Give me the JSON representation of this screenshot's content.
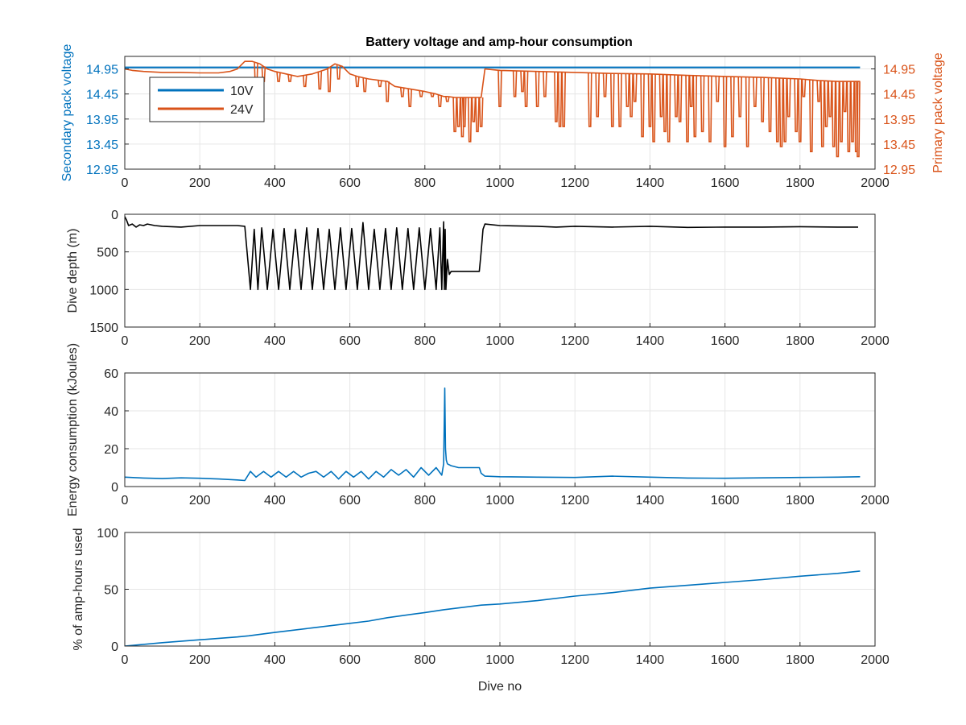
{
  "title": "Battery voltage and amp-hour consumption",
  "colors": {
    "blue": "#0072BD",
    "orange": "#D95319",
    "black": "#000000",
    "grid": "#E6E6E6"
  },
  "chart_data": [
    {
      "type": "line",
      "title": "Battery voltage and amp-hour consumption",
      "xlabel": "",
      "ylabel": "Secondary pack voltage",
      "ylabel_right": "Primary pack voltage",
      "xlim": [
        0,
        2000
      ],
      "ylim": [
        12.95,
        15.2
      ],
      "ylim_right": [
        12.95,
        15.2
      ],
      "xticks": [
        "0",
        "200",
        "400",
        "600",
        "800",
        "1000",
        "1200",
        "1400",
        "1600",
        "1800",
        "2000"
      ],
      "yticks": [
        "12.95",
        "13.45",
        "13.95",
        "14.45",
        "14.95"
      ],
      "yticks_right": [
        "12.95",
        "13.45",
        "13.95",
        "14.45",
        "14.95"
      ],
      "grid": true,
      "legend": "top-left",
      "series": [
        {
          "name": "10V",
          "axis": "left",
          "color": "#0072BD",
          "x": [
            0,
            1960
          ],
          "y": [
            14.98,
            14.98
          ]
        },
        {
          "name": "24V",
          "axis": "right",
          "color": "#D95319",
          "x": [
            0,
            20,
            50,
            100,
            150,
            200,
            250,
            280,
            300,
            320,
            340,
            360,
            380,
            400,
            430,
            460,
            500,
            540,
            560,
            580,
            600,
            620,
            650,
            700,
            720,
            760,
            800,
            830,
            850,
            860,
            880,
            900,
            950,
            960,
            1000,
            1100,
            1200,
            1300,
            1400,
            1500,
            1600,
            1700,
            1800,
            1850,
            1900,
            1950,
            1960
          ],
          "y": [
            14.95,
            14.92,
            14.9,
            14.88,
            14.88,
            14.87,
            14.87,
            14.9,
            14.95,
            15.1,
            15.1,
            15.05,
            14.95,
            14.9,
            14.85,
            14.8,
            14.85,
            14.95,
            15.05,
            15.0,
            14.85,
            14.8,
            14.75,
            14.7,
            14.6,
            14.55,
            14.5,
            14.45,
            14.4,
            14.4,
            14.38,
            14.38,
            14.38,
            14.95,
            14.92,
            14.9,
            14.88,
            14.86,
            14.85,
            14.82,
            14.8,
            14.78,
            14.75,
            14.72,
            14.7,
            14.7,
            14.7
          ],
          "dips": [
            [
              350,
              14.6
            ],
            [
              370,
              14.7
            ],
            [
              410,
              14.7
            ],
            [
              440,
              14.7
            ],
            [
              480,
              14.6
            ],
            [
              520,
              14.55
            ],
            [
              545,
              14.5
            ],
            [
              570,
              14.75
            ],
            [
              620,
              14.6
            ],
            [
              640,
              14.5
            ],
            [
              680,
              14.6
            ],
            [
              700,
              14.3
            ],
            [
              740,
              14.4
            ],
            [
              760,
              14.2
            ],
            [
              790,
              14.4
            ],
            [
              820,
              14.4
            ],
            [
              840,
              14.2
            ],
            [
              860,
              14.3
            ],
            [
              880,
              13.7
            ],
            [
              890,
              13.8
            ],
            [
              900,
              13.6
            ],
            [
              905,
              13.8
            ],
            [
              920,
              13.5
            ],
            [
              930,
              13.9
            ],
            [
              940,
              13.7
            ],
            [
              950,
              13.8
            ],
            [
              1000,
              14.2
            ],
            [
              1040,
              14.4
            ],
            [
              1060,
              14.5
            ],
            [
              1070,
              14.2
            ],
            [
              1100,
              14.2
            ],
            [
              1120,
              14.4
            ],
            [
              1150,
              13.9
            ],
            [
              1160,
              13.8
            ],
            [
              1170,
              13.8
            ],
            [
              1240,
              13.8
            ],
            [
              1260,
              14.0
            ],
            [
              1280,
              14.4
            ],
            [
              1300,
              13.8
            ],
            [
              1320,
              13.8
            ],
            [
              1340,
              14.2
            ],
            [
              1350,
              14.0
            ],
            [
              1360,
              14.3
            ],
            [
              1380,
              13.6
            ],
            [
              1400,
              13.8
            ],
            [
              1410,
              13.5
            ],
            [
              1430,
              14.0
            ],
            [
              1440,
              13.7
            ],
            [
              1450,
              13.5
            ],
            [
              1470,
              14.0
            ],
            [
              1480,
              13.9
            ],
            [
              1500,
              13.5
            ],
            [
              1510,
              14.2
            ],
            [
              1520,
              13.6
            ],
            [
              1540,
              13.7
            ],
            [
              1560,
              13.5
            ],
            [
              1580,
              14.3
            ],
            [
              1600,
              13.4
            ],
            [
              1620,
              13.6
            ],
            [
              1640,
              14.0
            ],
            [
              1660,
              13.4
            ],
            [
              1680,
              14.2
            ],
            [
              1700,
              13.9
            ],
            [
              1720,
              13.7
            ],
            [
              1740,
              13.5
            ],
            [
              1750,
              13.4
            ],
            [
              1760,
              13.5
            ],
            [
              1770,
              14.0
            ],
            [
              1790,
              13.7
            ],
            [
              1800,
              13.5
            ],
            [
              1810,
              14.4
            ],
            [
              1830,
              13.3
            ],
            [
              1850,
              14.3
            ],
            [
              1860,
              13.4
            ],
            [
              1870,
              13.8
            ],
            [
              1880,
              14.0
            ],
            [
              1890,
              13.4
            ],
            [
              1900,
              13.2
            ],
            [
              1910,
              13.5
            ],
            [
              1920,
              14.1
            ],
            [
              1930,
              13.3
            ],
            [
              1940,
              13.5
            ],
            [
              1950,
              13.3
            ],
            [
              1955,
              13.2
            ]
          ]
        }
      ]
    },
    {
      "type": "line",
      "xlabel": "",
      "ylabel": "Dive depth (m)",
      "xlim": [
        0,
        2000
      ],
      "ylim": [
        0,
        1500
      ],
      "y_reversed": true,
      "xticks": [
        "0",
        "200",
        "400",
        "600",
        "800",
        "1000",
        "1200",
        "1400",
        "1600",
        "1800",
        "2000"
      ],
      "yticks": [
        "0",
        "500",
        "1000",
        "1500"
      ],
      "grid": true,
      "series": [
        {
          "color": "#000000",
          "x": [
            0,
            5,
            10,
            20,
            30,
            40,
            50,
            60,
            80,
            100,
            150,
            200,
            250,
            300,
            320,
            335,
            345,
            355,
            365,
            380,
            395,
            410,
            425,
            440,
            455,
            470,
            485,
            500,
            515,
            530,
            545,
            560,
            575,
            590,
            605,
            620,
            635,
            650,
            665,
            680,
            695,
            710,
            725,
            740,
            755,
            770,
            785,
            800,
            815,
            830,
            840,
            845,
            850,
            852,
            854,
            856,
            860,
            865,
            870,
            880,
            900,
            930,
            945,
            950,
            955,
            960,
            1000,
            1100,
            1150,
            1200,
            1300,
            1400,
            1500,
            1600,
            1700,
            1800,
            1900,
            1955
          ],
          "y": [
            30,
            80,
            150,
            130,
            170,
            140,
            150,
            130,
            150,
            160,
            170,
            150,
            150,
            150,
            160,
            1000,
            200,
            1000,
            180,
            1000,
            200,
            1000,
            190,
            1000,
            200,
            1000,
            180,
            1000,
            190,
            1000,
            200,
            1000,
            180,
            1000,
            190,
            1000,
            110,
            1000,
            200,
            1000,
            190,
            1000,
            180,
            1000,
            190,
            1000,
            180,
            1000,
            190,
            1000,
            180,
            1000,
            100,
            1000,
            200,
            1000,
            600,
            800,
            760,
            760,
            760,
            760,
            760,
            500,
            200,
            130,
            150,
            160,
            170,
            160,
            170,
            160,
            175,
            170,
            170,
            165,
            170,
            170
          ]
        }
      ]
    },
    {
      "type": "line",
      "xlabel": "",
      "ylabel": "Energy consumption (kJoules)",
      "xlim": [
        0,
        2000
      ],
      "ylim": [
        0,
        60
      ],
      "xticks": [
        "0",
        "200",
        "400",
        "600",
        "800",
        "1000",
        "1200",
        "1400",
        "1600",
        "1800",
        "2000"
      ],
      "yticks": [
        "0",
        "20",
        "40",
        "60"
      ],
      "grid": true,
      "series": [
        {
          "color": "#0072BD",
          "x": [
            0,
            50,
            100,
            150,
            200,
            250,
            300,
            320,
            335,
            350,
            370,
            390,
            410,
            430,
            450,
            470,
            490,
            510,
            530,
            550,
            570,
            590,
            610,
            630,
            650,
            670,
            690,
            710,
            730,
            750,
            770,
            790,
            810,
            830,
            845,
            850,
            853,
            855,
            857,
            860,
            870,
            890,
            920,
            945,
            950,
            960,
            1000,
            1100,
            1200,
            1300,
            1400,
            1500,
            1600,
            1700,
            1800,
            1900,
            1960
          ],
          "y": [
            5,
            4.5,
            4.2,
            4.6,
            4.4,
            4.0,
            3.5,
            3.2,
            8,
            5,
            8,
            5,
            8,
            5,
            8,
            5,
            7,
            8,
            5,
            8,
            4,
            8,
            5,
            8,
            4,
            8,
            5,
            9,
            6,
            9,
            5,
            10,
            6,
            10,
            6,
            12,
            52,
            20,
            14,
            12,
            11,
            10,
            10,
            10,
            7,
            5.5,
            5.2,
            5.0,
            4.8,
            5.5,
            5.0,
            4.5,
            4.4,
            4.6,
            4.8,
            5.0,
            5.2
          ]
        }
      ]
    },
    {
      "type": "line",
      "xlabel": "Dive no",
      "ylabel": "% of amp-hours used",
      "xlim": [
        0,
        2000
      ],
      "ylim": [
        0,
        100
      ],
      "xticks": [
        "0",
        "200",
        "400",
        "600",
        "800",
        "1000",
        "1200",
        "1400",
        "1600",
        "1800",
        "2000"
      ],
      "yticks": [
        "0",
        "50",
        "100"
      ],
      "grid": true,
      "series": [
        {
          "color": "#0072BD",
          "x": [
            0,
            100,
            200,
            300,
            330,
            400,
            500,
            600,
            650,
            700,
            800,
            850,
            900,
            950,
            1000,
            1100,
            1200,
            1300,
            1400,
            1500,
            1600,
            1700,
            1800,
            1900,
            1960
          ],
          "y": [
            0,
            3,
            5.5,
            8,
            9,
            12,
            16,
            20,
            22,
            25,
            29.5,
            32,
            34,
            36,
            37,
            40,
            44,
            47,
            51,
            53.5,
            56,
            58.5,
            61.5,
            64,
            66
          ]
        }
      ]
    }
  ]
}
